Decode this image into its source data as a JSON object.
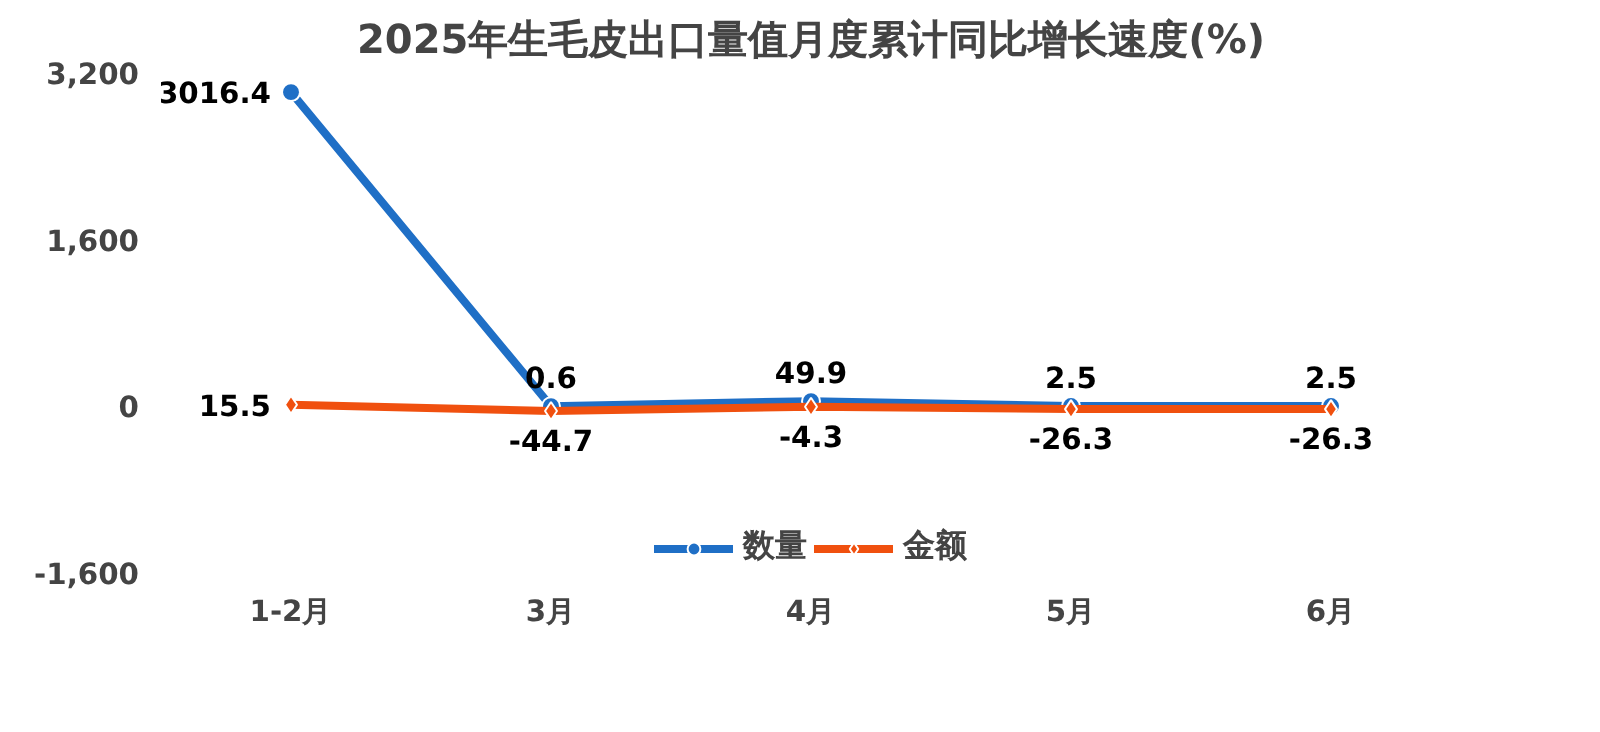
{
  "chart_data": {
    "type": "line",
    "title": "2025年生毛皮出口量值月度累计同比增长速度(%)",
    "categories": [
      "1-2月",
      "3月",
      "4月",
      "5月",
      "6月"
    ],
    "series": [
      {
        "name": "数量",
        "color": "#1f6fc6",
        "values": [
          3016.4,
          0.6,
          49.9,
          2.5,
          2.5
        ],
        "marker": "circle"
      },
      {
        "name": "金额",
        "color": "#f0500f",
        "values": [
          15.5,
          -44.7,
          -4.3,
          -26.3,
          -26.3
        ],
        "marker": "diamond"
      }
    ],
    "ylim": [
      -1600,
      3200
    ],
    "yticks": [
      {
        "value": -1600,
        "label": "-1,600"
      },
      0,
      {
        "value": 1600,
        "label": "1,600"
      },
      {
        "value": 3200,
        "label": "3,200"
      }
    ],
    "grid": false,
    "legend": "bottom",
    "data_labels": true,
    "line_style": "solid"
  }
}
